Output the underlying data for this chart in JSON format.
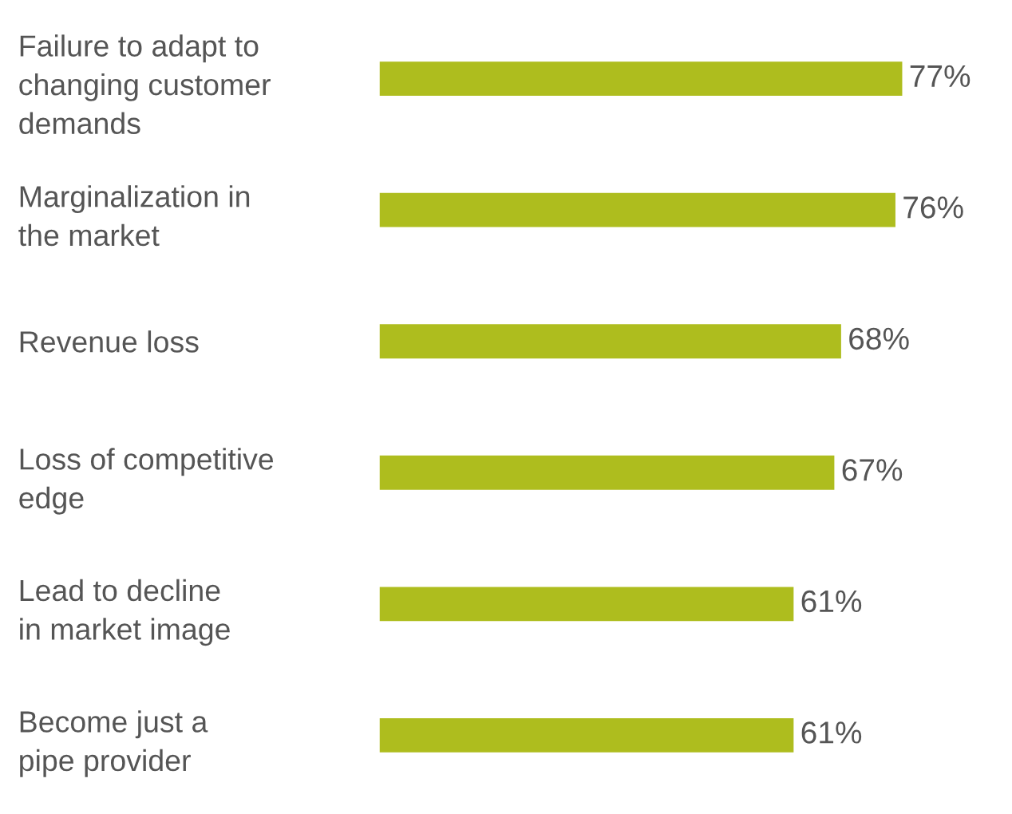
{
  "chart_data": {
    "type": "bar",
    "orientation": "horizontal",
    "categories": [
      "Failure to adapt to\nchanging customer\ndemands",
      "Marginalization in\nthe market",
      "Revenue loss",
      "Loss of competitive\nedge",
      "Lead to decline\nin market image",
      "Become just a\npipe provider"
    ],
    "values": [
      77,
      76,
      68,
      67,
      61,
      61
    ],
    "value_labels": [
      "77%",
      "76%",
      "68%",
      "67%",
      "61%",
      "61%"
    ],
    "color": "#aebd1e",
    "grid": false,
    "legend": false
  }
}
